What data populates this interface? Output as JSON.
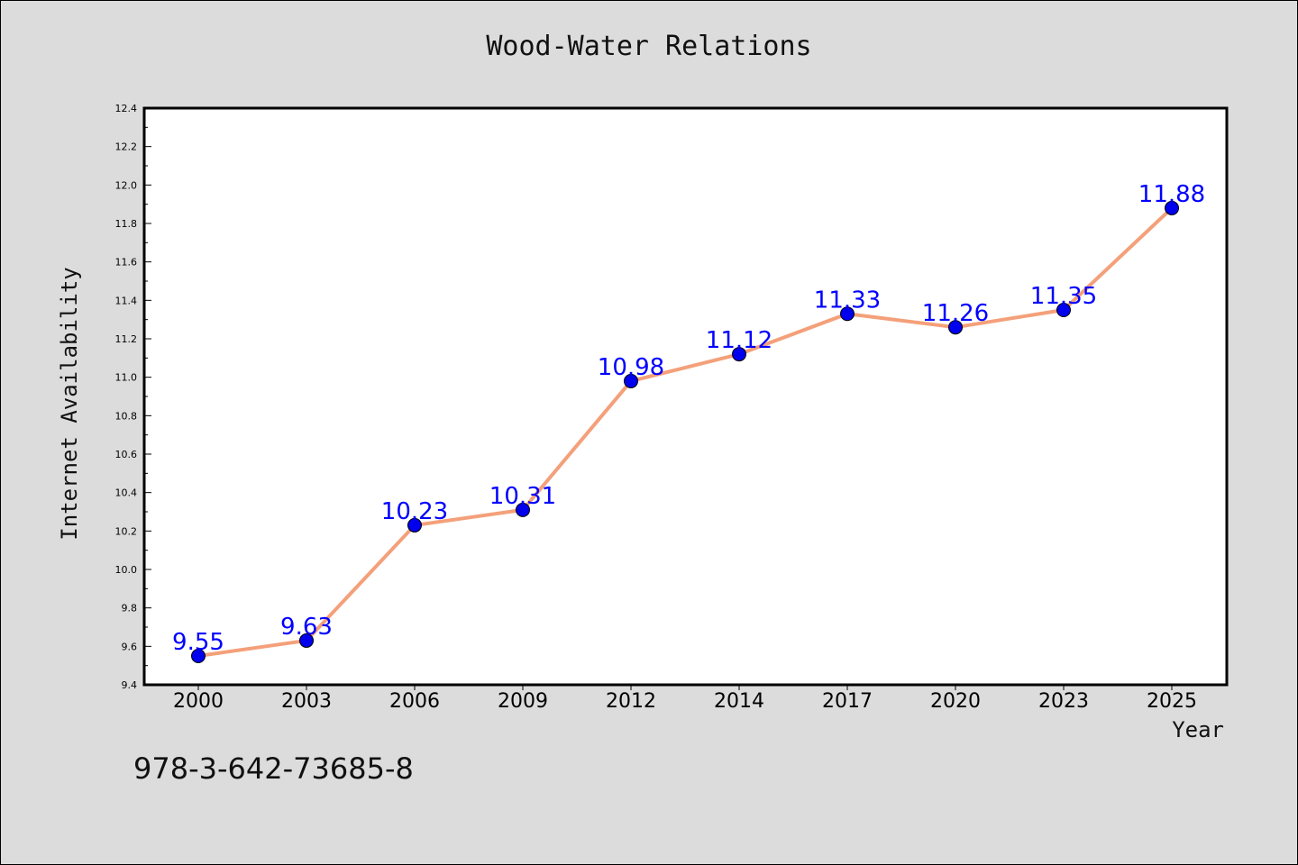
{
  "figure": {
    "isbn_text": "978-3-642-73685-8"
  },
  "chart_data": {
    "type": "line",
    "title": "Wood-Water Relations",
    "xlabel": "Year",
    "ylabel": "Internet Availability",
    "categories": [
      "2000",
      "2003",
      "2006",
      "2009",
      "2012",
      "2014",
      "2017",
      "2020",
      "2023",
      "2025"
    ],
    "series": [
      {
        "name": "",
        "values": [
          9.55,
          9.63,
          10.23,
          10.31,
          10.98,
          11.12,
          11.33,
          11.26,
          11.35,
          11.88
        ],
        "line_color": "#f4a07a",
        "marker_color": "#0000ee"
      }
    ],
    "data_labels": [
      "9.55",
      "9.63",
      "10.23",
      "10.31",
      "10.98",
      "11.12",
      "11.33",
      "11.26",
      "11.35",
      "11.88"
    ],
    "ylim": [
      9.4,
      12.4
    ],
    "y_ticks": [
      "9.4",
      "9.6",
      "9.8",
      "10.0",
      "10.2",
      "10.4",
      "10.6",
      "10.8",
      "11.0",
      "11.2",
      "11.4",
      "11.6",
      "11.8",
      "12.0",
      "12.2",
      "12.4"
    ],
    "data_label_color": "#0000ff",
    "grid": false,
    "legend": "none"
  }
}
